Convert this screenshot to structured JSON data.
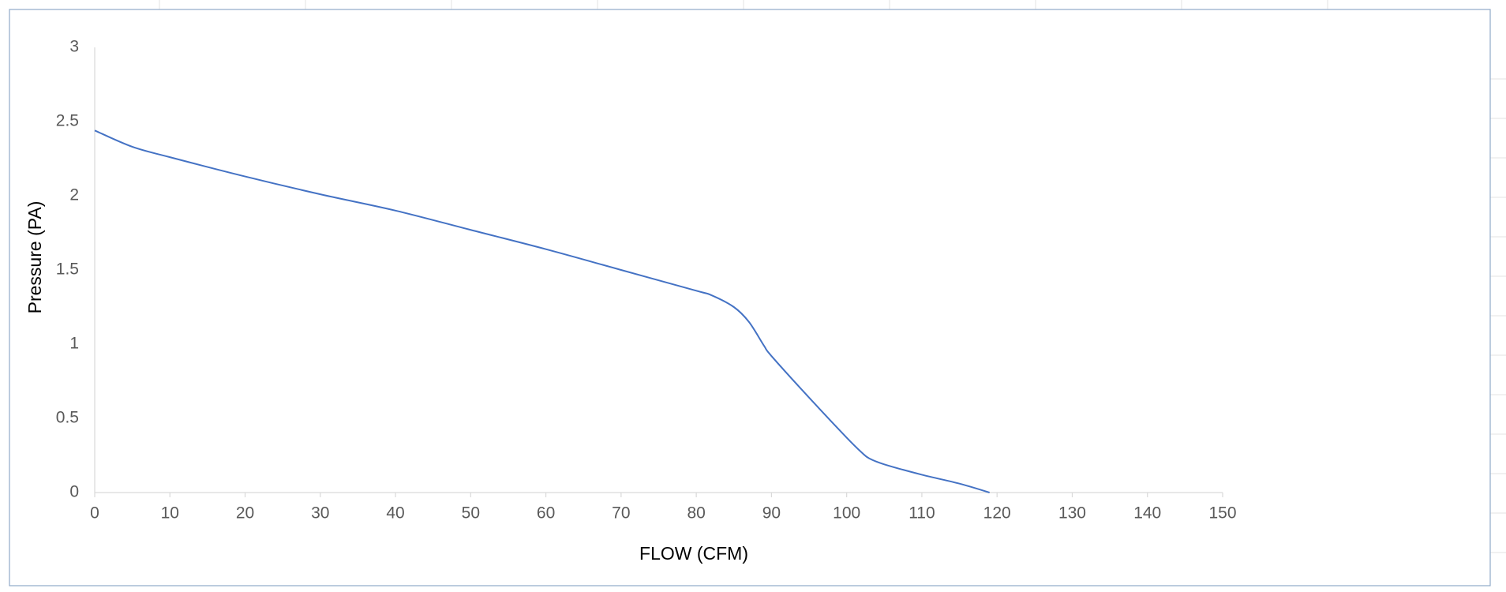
{
  "chart_data": {
    "type": "line",
    "x_label": "FLOW (CFM)",
    "y_label": "Pressure (PA)",
    "series": [
      {
        "color": "#4472c4",
        "x": [
          0,
          5,
          10,
          20,
          30,
          40,
          50,
          60,
          70,
          80,
          82,
          85,
          87,
          89,
          90,
          95,
          100,
          102,
          103,
          105,
          110,
          115,
          119
        ],
        "values": [
          2.44,
          2.33,
          2.26,
          2.13,
          2.01,
          1.9,
          1.77,
          1.64,
          1.5,
          1.36,
          1.33,
          1.25,
          1.15,
          0.99,
          0.92,
          0.64,
          0.37,
          0.27,
          0.23,
          0.19,
          0.12,
          0.06,
          0
        ]
      }
    ],
    "xlim": [
      0,
      150
    ],
    "xticks": [
      0,
      10,
      20,
      30,
      40,
      50,
      60,
      70,
      80,
      90,
      100,
      110,
      120,
      130,
      140,
      150
    ],
    "ylim": [
      0,
      3
    ],
    "yticks": [
      0,
      0.5,
      1,
      1.5,
      2,
      2.5,
      3
    ],
    "grid": false
  }
}
